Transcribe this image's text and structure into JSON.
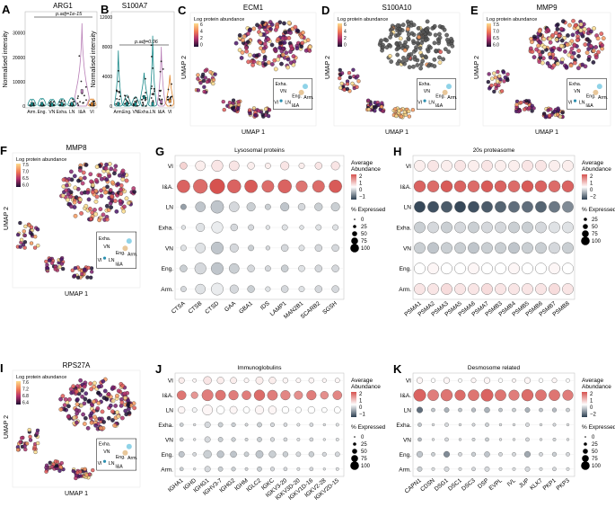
{
  "panels": {
    "A": {
      "letter": "A",
      "title": "ARG1",
      "ylabel": "Normalised intensity",
      "yticks": [
        "0",
        "10000",
        "20000",
        "30000"
      ],
      "cats": [
        "Arm.",
        "Eng.",
        "VN",
        "Exha.",
        "LN",
        "I&A",
        "VI"
      ],
      "pvalue": "p.adj=1e-15"
    },
    "B": {
      "letter": "B",
      "title": "S100A7",
      "ylabel": "Normalised intensity",
      "yticks": [
        "0",
        "4000",
        "8000",
        "12000"
      ],
      "cats": [
        "Arm.",
        "Eng.",
        "VN",
        "Exha.",
        "LN",
        "I&A",
        "VI"
      ],
      "pvalue": "p.adj=0.06"
    },
    "C": {
      "letter": "C",
      "title": "ECM1",
      "legend_title": "Log protein abundance",
      "ticks": [
        "6",
        "4",
        "2",
        "0"
      ],
      "xlabel": "UMAP 1",
      "ylabel": "UMAP 2"
    },
    "D": {
      "letter": "D",
      "title": "S100A10",
      "legend_title": "Log protein abundance",
      "ticks": [
        "6",
        "4",
        "2",
        "0"
      ],
      "xlabel": "UMAP 1",
      "ylabel": "UMAP 2"
    },
    "E": {
      "letter": "E",
      "title": "MMP9",
      "legend_title": "Log protein abundance",
      "ticks": [
        "7.5",
        "7.0",
        "6.5",
        "6.0"
      ],
      "xlabel": "UMAP 1",
      "ylabel": "UMAP 2"
    },
    "F": {
      "letter": "F",
      "title": "MMP8",
      "legend_title": "Log protein abundance",
      "ticks": [
        "7.5",
        "7.0",
        "6.5",
        "6.0"
      ],
      "xlabel": "UMAP 1",
      "ylabel": "UMAP 2"
    },
    "I": {
      "letter": "I",
      "title": "RPS27A",
      "legend_title": "Log protein abundance",
      "ticks": [
        "7.6",
        "7.2",
        "6.8",
        "6.4"
      ],
      "xlabel": "UMAP 1",
      "ylabel": "UMAP 2"
    },
    "G": {
      "letter": "G",
      "title": "Lysosomal proteins",
      "rows": [
        "VI",
        "I&A.",
        "LN",
        "Exha.",
        "VN",
        "Eng.",
        "Arm."
      ],
      "cols": [
        "CTSA",
        "CTSB",
        "CTSD",
        "GAA",
        "GBA1",
        "IDS",
        "LAMP1",
        "MAN2B1",
        "SCARB2",
        "SGSH"
      ]
    },
    "H": {
      "letter": "H",
      "title": "20s proteasome",
      "rows": [
        "VI",
        "I&A.",
        "LN",
        "Exha.",
        "VN",
        "Eng.",
        "Arm."
      ],
      "cols": [
        "PSMA1",
        "PSMA2",
        "PSMA3",
        "PSMA5",
        "PSMA6",
        "PSMA7",
        "PSMB3",
        "PSMB4",
        "PSMB5",
        "PSMB6",
        "PSMB7",
        "PSMB8"
      ]
    },
    "J": {
      "letter": "J",
      "title": "Immunoglobulins",
      "rows": [
        "VI",
        "I&A.",
        "LN",
        "Exha.",
        "VN",
        "Eng.",
        "Arm."
      ],
      "cols": [
        "IGHA1",
        "IGHD",
        "IGHG1",
        "IGHV3-7",
        "IGHG2",
        "IGHM",
        "IGLC2",
        "IGKC",
        "IGKV3-20",
        "IGKV3D-20",
        "IGKV1D-16",
        "IGKV2-28",
        "IGKV2D-15"
      ]
    },
    "K": {
      "letter": "K",
      "title": "Desmosome related",
      "rows": [
        "VI",
        "I&A.",
        "LN",
        "Exha.",
        "VN",
        "Eng.",
        "Arm."
      ],
      "cols": [
        "CAPN1",
        "CDSN",
        "DSG1",
        "DSC1",
        "DSC3",
        "DSP",
        "EVPL",
        "IVL",
        "JUP",
        "KLK7",
        "PKP1",
        "PKP3"
      ]
    }
  },
  "umap_inset": {
    "labels": [
      "Exha.",
      "VN",
      "Eng.",
      "Arm.",
      "VI",
      "LN",
      "I&A"
    ]
  },
  "dot_legend": {
    "abundance_title": "Average\nAbundance",
    "abundance_ticks_G": [
      "2",
      "1",
      "0",
      "−1"
    ],
    "abundance_ticks_H": [
      "2",
      "1",
      "0",
      "−2"
    ],
    "abundance_ticks_J": [
      "2",
      "1",
      "0",
      "−1"
    ],
    "abundance_ticks_K": [
      "2",
      "1",
      "0",
      "−2"
    ],
    "expressed_title": "% Expressed",
    "expressed_ticks": [
      "0",
      "25",
      "50",
      "75",
      "100"
    ],
    "expressed_ticks_H": [
      "25",
      "50",
      "75",
      "100"
    ]
  },
  "colors": {
    "violin_green": "#1a8a8a",
    "violin_orange": "#e0842a",
    "violin_purple": "#b97fb7",
    "high": "#d6524f",
    "mid": "#ffffff",
    "low": "#2b3e50"
  },
  "chart_data": [
    {
      "type": "violin",
      "panel": "A",
      "title": "ARG1",
      "categories": [
        "Arm.",
        "Eng.",
        "VN",
        "Exha.",
        "LN",
        "I&A",
        "VI"
      ],
      "medians": [
        800,
        900,
        700,
        850,
        900,
        6000,
        800
      ],
      "maxima": [
        2000,
        2500,
        2000,
        2400,
        3000,
        34000,
        2200
      ],
      "ylim": [
        0,
        38000
      ],
      "annotation": "p.adj=1e-15"
    },
    {
      "type": "violin",
      "panel": "B",
      "title": "S100A7",
      "categories": [
        "Arm.",
        "Eng.",
        "VN",
        "Exha.",
        "LN",
        "I&A",
        "VI"
      ],
      "medians": [
        300,
        300,
        250,
        1200,
        300,
        600,
        700
      ],
      "maxima": [
        7500,
        1500,
        1200,
        4500,
        9500,
        8000,
        4200
      ],
      "ylim": [
        0,
        12500
      ],
      "annotation": "p.adj=0.06"
    },
    {
      "type": "scatter",
      "panel": "C",
      "title": "ECM1",
      "color_range": [
        0,
        6
      ]
    },
    {
      "type": "scatter",
      "panel": "D",
      "title": "S100A10",
      "color_range": [
        0,
        6
      ]
    },
    {
      "type": "scatter",
      "panel": "E",
      "title": "MMP9",
      "color_range": [
        6.0,
        7.5
      ]
    },
    {
      "type": "scatter",
      "panel": "F",
      "title": "MMP8",
      "color_range": [
        6.0,
        7.5
      ]
    },
    {
      "type": "scatter",
      "panel": "I",
      "title": "RPS27A",
      "color_range": [
        6.4,
        7.6
      ]
    },
    {
      "type": "dotplot",
      "panel": "G",
      "title": "Lysosomal proteins",
      "abundance": [
        [
          0.5,
          0.2,
          0.3,
          0.3,
          0.2,
          0.2,
          0.3,
          0.2,
          0.3,
          0.3
        ],
        [
          1.8,
          1.7,
          2.0,
          1.8,
          1.9,
          1.7,
          1.8,
          1.6,
          1.7,
          1.9
        ],
        [
          -1.0,
          -0.6,
          -0.6,
          -0.4,
          -0.5,
          -0.5,
          -0.6,
          -0.4,
          -0.5,
          -0.5
        ],
        [
          -0.3,
          -0.3,
          -0.2,
          -0.4,
          -0.4,
          -0.3,
          -0.3,
          -0.3,
          -0.3,
          -0.3
        ],
        [
          -0.3,
          -0.3,
          -0.6,
          -0.4,
          -0.5,
          -0.4,
          -0.4,
          -0.3,
          -0.4,
          -0.4
        ],
        [
          -0.5,
          -0.4,
          -0.6,
          -0.5,
          -0.4,
          -0.4,
          -0.5,
          -0.3,
          -0.4,
          -0.4
        ],
        [
          -0.4,
          -0.3,
          -0.2,
          -0.4,
          -0.5,
          -0.3,
          -0.4,
          -0.3,
          -0.4,
          -0.4
        ]
      ],
      "expressed": [
        [
          40,
          60,
          70,
          60,
          40,
          30,
          50,
          30,
          40,
          50
        ],
        [
          80,
          90,
          95,
          85,
          80,
          75,
          85,
          70,
          75,
          80
        ],
        [
          30,
          60,
          80,
          60,
          50,
          30,
          50,
          40,
          45,
          50
        ],
        [
          20,
          50,
          70,
          40,
          30,
          20,
          30,
          20,
          30,
          30
        ],
        [
          30,
          60,
          75,
          50,
          30,
          20,
          40,
          30,
          40,
          40
        ],
        [
          40,
          70,
          75,
          60,
          40,
          30,
          40,
          35,
          40,
          40
        ],
        [
          30,
          60,
          75,
          50,
          40,
          25,
          40,
          30,
          40,
          40
        ]
      ]
    },
    {
      "type": "dotplot",
      "panel": "H",
      "title": "20s proteasome",
      "abundance": [
        [
          0.2,
          0.3,
          0.2,
          0.3,
          0.2,
          0.3,
          0.2,
          0.2,
          0.3,
          0.3,
          0.2,
          0.2
        ],
        [
          1.8,
          1.7,
          1.9,
          1.8,
          1.7,
          1.9,
          1.8,
          1.7,
          1.9,
          1.8,
          1.7,
          1.8
        ],
        [
          -1.9,
          -1.8,
          -1.7,
          -1.9,
          -1.8,
          -1.7,
          -1.6,
          -1.5,
          -1.5,
          -1.6,
          -1.4,
          -1.2
        ],
        [
          -0.5,
          -0.4,
          -0.5,
          -0.4,
          -0.5,
          -0.4,
          -0.4,
          -0.5,
          -0.5,
          -0.4,
          -0.3,
          -0.3
        ],
        [
          -0.5,
          -0.6,
          -0.5,
          -0.5,
          -0.6,
          -0.5,
          -0.5,
          -0.6,
          -0.5,
          -0.5,
          -0.4,
          -0.5
        ],
        [
          0.0,
          0.1,
          0.0,
          0.0,
          0.1,
          0.0,
          0.0,
          0.1,
          0.0,
          0.0,
          0.1,
          0.0
        ],
        [
          0.3,
          0.3,
          0.4,
          0.3,
          0.3,
          0.4,
          0.3,
          0.3,
          0.3,
          0.3,
          0.4,
          0.3
        ]
      ],
      "expressed": [
        [
          85,
          85,
          85,
          85,
          85,
          85,
          85,
          85,
          85,
          85,
          85,
          85
        ],
        [
          90,
          90,
          90,
          90,
          90,
          90,
          90,
          90,
          90,
          90,
          90,
          90
        ],
        [
          85,
          85,
          85,
          85,
          85,
          85,
          85,
          85,
          85,
          85,
          85,
          85
        ],
        [
          85,
          85,
          85,
          85,
          85,
          85,
          85,
          85,
          85,
          85,
          85,
          85
        ],
        [
          85,
          85,
          85,
          85,
          85,
          85,
          85,
          85,
          85,
          85,
          85,
          85
        ],
        [
          85,
          85,
          85,
          85,
          85,
          85,
          85,
          85,
          85,
          85,
          85,
          85
        ],
        [
          85,
          85,
          85,
          85,
          85,
          85,
          85,
          85,
          85,
          85,
          85,
          85
        ]
      ]
    },
    {
      "type": "dotplot",
      "panel": "J",
      "title": "Immunoglobulins",
      "abundance": [
        [
          0.2,
          0.1,
          0.3,
          0.2,
          0.2,
          0.1,
          0.2,
          0.2,
          0.1,
          0.1,
          0.1,
          0.1,
          0.1
        ],
        [
          1.6,
          1.2,
          1.5,
          1.6,
          1.5,
          1.5,
          1.7,
          1.5,
          1.4,
          1.3,
          1.5,
          1.3,
          1.4
        ],
        [
          0.1,
          -0.1,
          0.1,
          0.0,
          0.1,
          0.0,
          0.1,
          0.1,
          0.0,
          0.0,
          0.0,
          0.0,
          0.0
        ],
        [
          -0.5,
          -0.3,
          -0.4,
          -0.5,
          -0.5,
          -0.4,
          -0.5,
          -0.4,
          -0.4,
          -0.3,
          -0.4,
          -0.3,
          -0.3
        ],
        [
          -0.5,
          -0.3,
          -0.4,
          -0.5,
          -0.5,
          -0.4,
          -0.5,
          -0.4,
          -0.4,
          -0.3,
          -0.4,
          -0.3,
          -0.3
        ],
        [
          -0.6,
          -0.4,
          -0.5,
          -0.6,
          -0.6,
          -0.5,
          -0.6,
          -0.5,
          -0.5,
          -0.4,
          -0.5,
          -0.4,
          -0.4
        ],
        [
          -0.5,
          -0.3,
          -0.4,
          -0.5,
          -0.5,
          -0.4,
          -0.5,
          -0.4,
          -0.4,
          -0.3,
          -0.4,
          -0.3,
          -0.3
        ]
      ],
      "expressed": [
        [
          40,
          20,
          60,
          50,
          45,
          30,
          55,
          50,
          35,
          30,
          35,
          25,
          30
        ],
        [
          70,
          50,
          90,
          80,
          75,
          70,
          85,
          80,
          75,
          65,
          75,
          60,
          70
        ],
        [
          50,
          30,
          80,
          60,
          55,
          45,
          65,
          60,
          50,
          40,
          50,
          35,
          45
        ],
        [
          20,
          10,
          40,
          30,
          25,
          15,
          30,
          25,
          20,
          15,
          20,
          10,
          15
        ],
        [
          20,
          10,
          40,
          30,
          25,
          15,
          30,
          25,
          20,
          15,
          20,
          10,
          15
        ],
        [
          40,
          20,
          60,
          50,
          45,
          30,
          55,
          50,
          35,
          30,
          35,
          25,
          30
        ],
        [
          20,
          10,
          40,
          30,
          25,
          15,
          30,
          25,
          20,
          15,
          20,
          10,
          15
        ]
      ]
    },
    {
      "type": "dotplot",
      "panel": "K",
      "title": "Desmosome related",
      "abundance": [
        [
          0.1,
          0.0,
          0.1,
          0.0,
          0.1,
          0.1,
          0.0,
          0.1,
          0.1,
          0.0,
          0.1,
          0.0
        ],
        [
          1.8,
          1.5,
          1.6,
          1.7,
          1.6,
          1.8,
          1.6,
          1.5,
          1.7,
          1.6,
          1.6,
          1.5
        ],
        [
          -1.5,
          -0.6,
          -0.8,
          -0.6,
          -0.7,
          -0.8,
          -0.6,
          -0.5,
          -0.8,
          -0.6,
          -0.7,
          -0.5
        ],
        [
          -0.6,
          -0.3,
          -0.4,
          -0.3,
          -0.4,
          -0.5,
          -0.3,
          -0.3,
          -0.4,
          -0.3,
          -0.4,
          -0.3
        ],
        [
          -0.7,
          -0.3,
          -0.4,
          -0.3,
          -0.4,
          -0.5,
          -0.3,
          -0.3,
          -0.4,
          -0.3,
          -0.4,
          -0.3
        ],
        [
          -0.6,
          -0.5,
          -1.2,
          -0.4,
          -0.5,
          -0.6,
          -0.4,
          -0.4,
          -0.9,
          -0.4,
          -0.5,
          -0.4
        ],
        [
          -0.5,
          -0.3,
          -0.4,
          -0.3,
          -0.4,
          -0.4,
          -0.3,
          -0.3,
          -0.4,
          -0.3,
          -0.4,
          -0.3
        ]
      ],
      "expressed": [
        [
          40,
          25,
          40,
          20,
          30,
          40,
          25,
          20,
          40,
          25,
          30,
          20
        ],
        [
          95,
          85,
          90,
          80,
          85,
          95,
          85,
          80,
          90,
          85,
          85,
          80
        ],
        [
          40,
          20,
          30,
          20,
          25,
          35,
          20,
          20,
          30,
          20,
          25,
          20
        ],
        [
          20,
          10,
          20,
          10,
          15,
          20,
          10,
          10,
          20,
          10,
          15,
          10
        ],
        [
          20,
          10,
          20,
          10,
          15,
          20,
          10,
          10,
          20,
          10,
          15,
          10
        ],
        [
          40,
          20,
          40,
          20,
          25,
          35,
          20,
          20,
          40,
          20,
          25,
          20
        ],
        [
          30,
          15,
          30,
          15,
          20,
          30,
          15,
          15,
          30,
          15,
          20,
          15
        ]
      ]
    }
  ]
}
